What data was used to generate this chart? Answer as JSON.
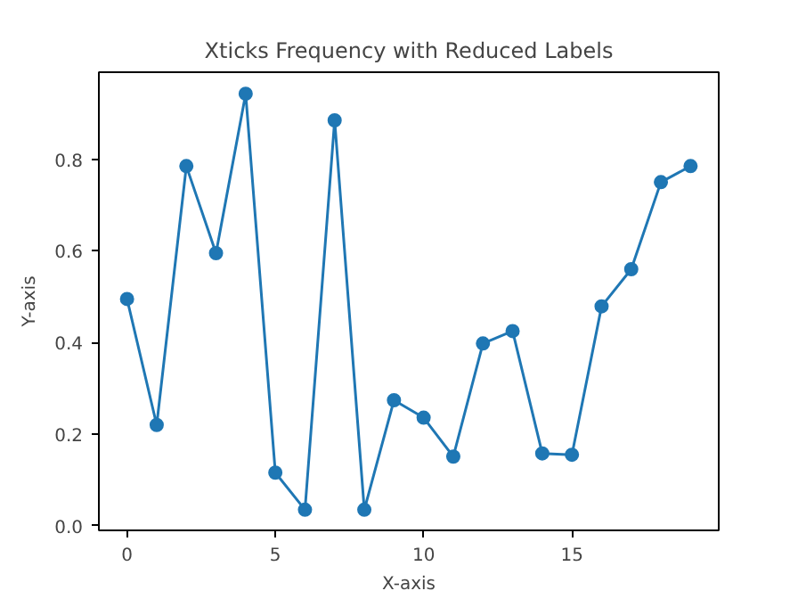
{
  "chart_data": {
    "type": "line",
    "title": "Xticks Frequency with Reduced Labels",
    "xlabel": "X-axis",
    "ylabel": "Y-axis",
    "x": [
      0,
      1,
      2,
      3,
      4,
      5,
      6,
      7,
      8,
      9,
      10,
      11,
      12,
      13,
      14,
      15,
      16,
      17,
      18,
      19
    ],
    "series": [
      {
        "color": "#1f77b4",
        "values": [
          0.495,
          0.22,
          0.785,
          0.595,
          0.943,
          0.116,
          0.035,
          0.885,
          0.035,
          0.274,
          0.236,
          0.151,
          0.398,
          0.425,
          0.158,
          0.155,
          0.479,
          0.56,
          0.75,
          0.785
        ]
      }
    ],
    "xlim": [
      -0.95,
      19.95
    ],
    "ylim": [
      -0.01,
      0.99
    ],
    "xticks": [
      0,
      5,
      10,
      15
    ],
    "yticks": [
      {
        "value": 0,
        "label": "0.0"
      },
      {
        "value": 0.2,
        "label": "0.2"
      },
      {
        "value": 0.4,
        "label": "0.4"
      },
      {
        "value": 0.6,
        "label": "0.6"
      },
      {
        "value": 0.8,
        "label": "0.8"
      }
    ],
    "marker": "circle",
    "line_style": "solid",
    "grid": false
  }
}
